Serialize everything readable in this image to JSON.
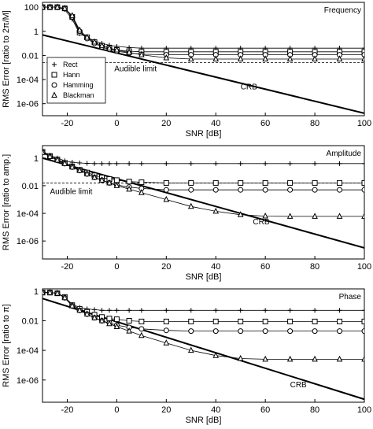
{
  "chart_data": [
    {
      "type": "line",
      "title": "Frequency",
      "xlabel": "SNR [dB]",
      "ylabel": "RMS Error [ratio to 2π/M]",
      "xlim": [
        -30,
        100
      ],
      "ylim_log10": [
        -7,
        2.4
      ],
      "log_y": true,
      "x_ticks": [
        "-20",
        "0",
        "20",
        "40",
        "60",
        "80",
        "100"
      ],
      "x_tick_values": [
        -20,
        0,
        20,
        40,
        60,
        80,
        100
      ],
      "y_ticks": [
        "100",
        "1",
        "0.01",
        "1e-04",
        "1e-06"
      ],
      "y_tick_log10": [
        2,
        0,
        -2,
        -4,
        -6
      ],
      "legend": {
        "placement": "left",
        "entries": [
          {
            "label": "Rect",
            "marker": "plus"
          },
          {
            "label": "Hann",
            "marker": "square"
          },
          {
            "label": "Hamming",
            "marker": "circle"
          },
          {
            "label": "Blackman",
            "marker": "triangle"
          }
        ]
      },
      "annotations": [
        {
          "text": "Audible limit",
          "x": -1,
          "log10y": -3.3
        },
        {
          "text": "CRB",
          "x": 50,
          "log10y": -4.8
        }
      ],
      "audible_limit_log10": -2.6,
      "crb": {
        "x": [
          -30,
          100
        ],
        "log10": [
          -0.3,
          -6.8
        ]
      },
      "series": [
        {
          "name": "Rect",
          "marker": "plus",
          "x": [
            -30,
            -27,
            -24,
            -21,
            -18,
            -15,
            -12,
            -9,
            -6,
            -3,
            0,
            5,
            10,
            20,
            30,
            40,
            50,
            60,
            70,
            80,
            90,
            100
          ],
          "log10": [
            2,
            2,
            2,
            1.8,
            1,
            -0.2,
            -0.5,
            -0.8,
            -1,
            -1.15,
            -1.25,
            -1.35,
            -1.4,
            -1.4,
            -1.4,
            -1.4,
            -1.4,
            -1.4,
            -1.4,
            -1.4,
            -1.4,
            -1.4
          ]
        },
        {
          "name": "Hann",
          "marker": "square",
          "x": [
            -30,
            -27,
            -24,
            -21,
            -18,
            -15,
            -12,
            -9,
            -6,
            -3,
            0,
            5,
            10,
            20,
            30,
            40,
            50,
            60,
            70,
            80,
            90,
            100
          ],
          "log10": [
            2,
            2,
            2,
            1.9,
            1.2,
            -0.1,
            -0.5,
            -0.9,
            -1.2,
            -1.4,
            -1.55,
            -1.65,
            -1.7,
            -1.7,
            -1.7,
            -1.7,
            -1.7,
            -1.7,
            -1.7,
            -1.7,
            -1.7,
            -1.7
          ]
        },
        {
          "name": "Hamming",
          "marker": "circle",
          "x": [
            -30,
            -27,
            -24,
            -21,
            -18,
            -15,
            -12,
            -9,
            -6,
            -3,
            0,
            5,
            10,
            20,
            30,
            40,
            50,
            60,
            70,
            80,
            90,
            100
          ],
          "log10": [
            2,
            2,
            2,
            1.9,
            1.2,
            0,
            -0.6,
            -1,
            -1.3,
            -1.5,
            -1.65,
            -1.8,
            -1.9,
            -1.95,
            -1.95,
            -1.95,
            -1.95,
            -1.95,
            -1.95,
            -1.95,
            -1.95,
            -1.95
          ]
        },
        {
          "name": "Blackman",
          "marker": "triangle",
          "x": [
            -30,
            -27,
            -24,
            -21,
            -18,
            -15,
            -12,
            -9,
            -6,
            -3,
            0,
            5,
            10,
            20,
            30,
            40,
            50,
            60,
            70,
            80,
            90,
            100
          ],
          "log10": [
            2,
            2,
            2,
            1.9,
            1.3,
            0.1,
            -0.5,
            -0.9,
            -1.2,
            -1.4,
            -1.55,
            -1.75,
            -1.95,
            -2.2,
            -2.3,
            -2.3,
            -2.3,
            -2.3,
            -2.3,
            -2.3,
            -2.3,
            -2.3
          ]
        }
      ]
    },
    {
      "type": "line",
      "title": "Amplitude",
      "xlabel": "SNR [dB]",
      "ylabel": "RMS Error [ratio to amp.]",
      "xlim": [
        -30,
        100
      ],
      "ylim_log10": [
        -7.3,
        0.9
      ],
      "log_y": true,
      "x_ticks": [
        "-20",
        "0",
        "20",
        "40",
        "60",
        "80",
        "100"
      ],
      "x_tick_values": [
        -20,
        0,
        20,
        40,
        60,
        80,
        100
      ],
      "y_ticks": [
        "1",
        "0.01",
        "1e-04",
        "1e-06"
      ],
      "y_tick_log10": [
        0,
        -2,
        -4,
        -6
      ],
      "annotations": [
        {
          "text": "Audible limit",
          "x": -27,
          "log10y": -2.6
        },
        {
          "text": "CRB",
          "x": 55,
          "log10y": -4.8
        }
      ],
      "audible_limit_log10": -1.8,
      "crb": {
        "x": [
          -30,
          100
        ],
        "log10": [
          0,
          -6.5
        ]
      },
      "series": [
        {
          "name": "Rect",
          "marker": "plus",
          "x": [
            -30,
            -27,
            -24,
            -21,
            -18,
            -15,
            -12,
            -9,
            -6,
            -3,
            0,
            5,
            10,
            20,
            30,
            40,
            50,
            60,
            70,
            80,
            90,
            100
          ],
          "log10": [
            0.5,
            0.2,
            0,
            -0.2,
            -0.3,
            -0.35,
            -0.38,
            -0.4,
            -0.4,
            -0.4,
            -0.4,
            -0.4,
            -0.4,
            -0.4,
            -0.4,
            -0.4,
            -0.4,
            -0.4,
            -0.4,
            -0.4,
            -0.4,
            -0.4
          ]
        },
        {
          "name": "Hann",
          "marker": "square",
          "x": [
            -30,
            -27,
            -24,
            -21,
            -18,
            -15,
            -12,
            -9,
            -6,
            -3,
            0,
            5,
            10,
            20,
            30,
            40,
            50,
            60,
            70,
            80,
            90,
            100
          ],
          "log10": [
            0.45,
            0.15,
            -0.1,
            -0.35,
            -0.6,
            -0.85,
            -1.05,
            -1.25,
            -1.4,
            -1.52,
            -1.6,
            -1.7,
            -1.75,
            -1.8,
            -1.8,
            -1.8,
            -1.8,
            -1.8,
            -1.8,
            -1.8,
            -1.8,
            -1.8
          ]
        },
        {
          "name": "Hamming",
          "marker": "circle",
          "x": [
            -30,
            -27,
            -24,
            -21,
            -18,
            -15,
            -12,
            -9,
            -6,
            -3,
            0,
            5,
            10,
            20,
            30,
            40,
            50,
            60,
            70,
            80,
            90,
            100
          ],
          "log10": [
            0.4,
            0.1,
            -0.15,
            -0.4,
            -0.65,
            -0.9,
            -1.15,
            -1.4,
            -1.6,
            -1.8,
            -1.95,
            -2.1,
            -2.2,
            -2.3,
            -2.3,
            -2.3,
            -2.3,
            -2.3,
            -2.3,
            -2.3,
            -2.3,
            -2.3
          ]
        },
        {
          "name": "Blackman",
          "marker": "triangle",
          "x": [
            -30,
            -27,
            -24,
            -21,
            -18,
            -15,
            -12,
            -9,
            -6,
            -3,
            0,
            5,
            10,
            20,
            30,
            40,
            50,
            60,
            70,
            80,
            90,
            100
          ],
          "log10": [
            0.4,
            0.1,
            -0.15,
            -0.4,
            -0.65,
            -0.9,
            -1.15,
            -1.4,
            -1.6,
            -1.8,
            -2,
            -2.25,
            -2.5,
            -3,
            -3.5,
            -3.85,
            -4.1,
            -4.2,
            -4.22,
            -4.22,
            -4.22,
            -4.22
          ]
        }
      ]
    },
    {
      "type": "line",
      "title": "Phase",
      "xlabel": "SNR [dB]",
      "ylabel": "RMS Error [ratio to π]",
      "xlim": [
        -30,
        100
      ],
      "ylim_log10": [
        -7.5,
        0.15
      ],
      "log_y": true,
      "x_ticks": [
        "-20",
        "0",
        "20",
        "40",
        "60",
        "80",
        "100"
      ],
      "x_tick_values": [
        -20,
        0,
        20,
        40,
        60,
        80,
        100
      ],
      "y_ticks": [
        "1",
        "0.01",
        "1e-04",
        "1e-06"
      ],
      "y_tick_log10": [
        0,
        -2,
        -4,
        -6
      ],
      "annotations": [
        {
          "text": "CRB",
          "x": 70,
          "log10y": -6.5
        }
      ],
      "crb": {
        "x": [
          -30,
          100
        ],
        "log10": [
          -0.5,
          -7.3
        ]
      },
      "series": [
        {
          "name": "Rect",
          "marker": "plus",
          "x": [
            -30,
            -27,
            -24,
            -21,
            -18,
            -15,
            -12,
            -9,
            -6,
            -3,
            0,
            5,
            10,
            20,
            30,
            40,
            50,
            60,
            70,
            80,
            90,
            100
          ],
          "log10": [
            -0.1,
            -0.1,
            -0.15,
            -0.4,
            -0.9,
            -1.1,
            -1.2,
            -1.25,
            -1.3,
            -1.3,
            -1.3,
            -1.3,
            -1.3,
            -1.3,
            -1.3,
            -1.3,
            -1.3,
            -1.3,
            -1.3,
            -1.3,
            -1.3,
            -1.3
          ]
        },
        {
          "name": "Hann",
          "marker": "square",
          "x": [
            -30,
            -27,
            -24,
            -21,
            -18,
            -15,
            -12,
            -9,
            -6,
            -3,
            0,
            5,
            10,
            20,
            30,
            40,
            50,
            60,
            70,
            80,
            90,
            100
          ],
          "log10": [
            -0.1,
            -0.1,
            -0.15,
            -0.4,
            -0.95,
            -1.2,
            -1.4,
            -1.6,
            -1.75,
            -1.85,
            -1.9,
            -2,
            -2.05,
            -2.05,
            -2.05,
            -2.05,
            -2.05,
            -2.05,
            -2.05,
            -2.05,
            -2.05,
            -2.05
          ]
        },
        {
          "name": "Hamming",
          "marker": "circle",
          "x": [
            -30,
            -27,
            -24,
            -21,
            -18,
            -15,
            -12,
            -9,
            -6,
            -3,
            0,
            5,
            10,
            20,
            30,
            40,
            50,
            60,
            70,
            80,
            90,
            100
          ],
          "log10": [
            -0.1,
            -0.1,
            -0.15,
            -0.45,
            -1,
            -1.3,
            -1.55,
            -1.8,
            -2,
            -2.15,
            -2.3,
            -2.45,
            -2.55,
            -2.65,
            -2.7,
            -2.7,
            -2.7,
            -2.7,
            -2.7,
            -2.7,
            -2.7,
            -2.7
          ]
        },
        {
          "name": "Blackman",
          "marker": "triangle",
          "x": [
            -30,
            -27,
            -24,
            -21,
            -18,
            -15,
            -12,
            -9,
            -6,
            -3,
            0,
            5,
            10,
            20,
            30,
            40,
            50,
            60,
            70,
            80,
            90,
            100
          ],
          "log10": [
            -0.1,
            -0.1,
            -0.15,
            -0.45,
            -1,
            -1.3,
            -1.55,
            -1.8,
            -2,
            -2.2,
            -2.4,
            -2.7,
            -3,
            -3.5,
            -4,
            -4.35,
            -4.55,
            -4.6,
            -4.6,
            -4.6,
            -4.6,
            -4.6
          ]
        }
      ]
    }
  ]
}
